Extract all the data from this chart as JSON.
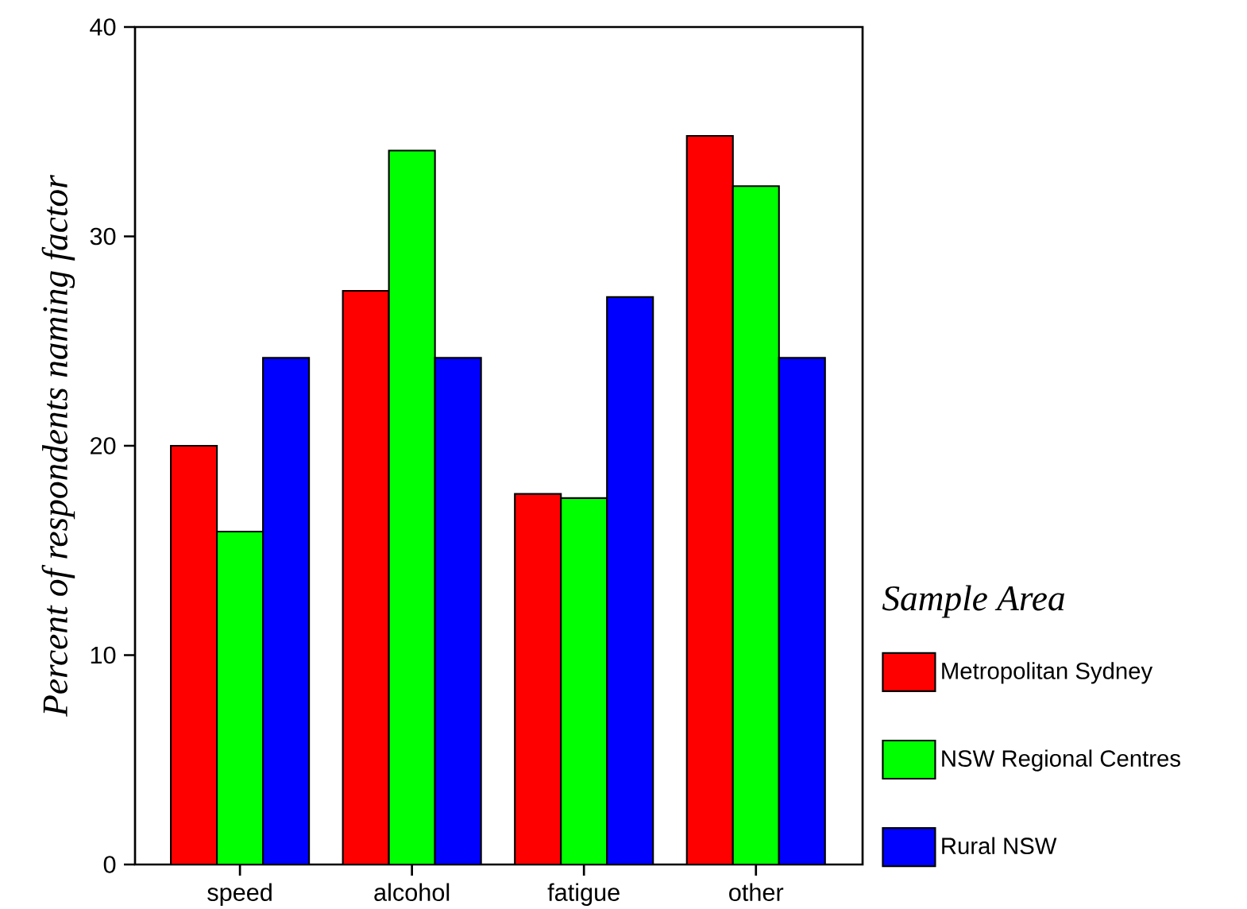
{
  "chart_data": {
    "type": "bar",
    "ylabel": "Percent of respondents naming factor",
    "legend_title": "Sample Area",
    "categories": [
      "speed",
      "alcohol",
      "fatigue",
      "other"
    ],
    "series": [
      {
        "name": "Metropolitan Sydney",
        "color": "#ff0000",
        "values": [
          20.0,
          27.4,
          17.7,
          34.8
        ]
      },
      {
        "name": "NSW Regional Centres",
        "color": "#00ff00",
        "values": [
          15.9,
          34.1,
          17.5,
          32.4
        ]
      },
      {
        "name": "Rural NSW",
        "color": "#0000ff",
        "values": [
          24.2,
          24.2,
          27.1,
          24.2
        ]
      }
    ],
    "ylim": [
      0,
      40
    ],
    "yticks": [
      0,
      10,
      20,
      30,
      40
    ],
    "grid": false,
    "legend": "right"
  }
}
